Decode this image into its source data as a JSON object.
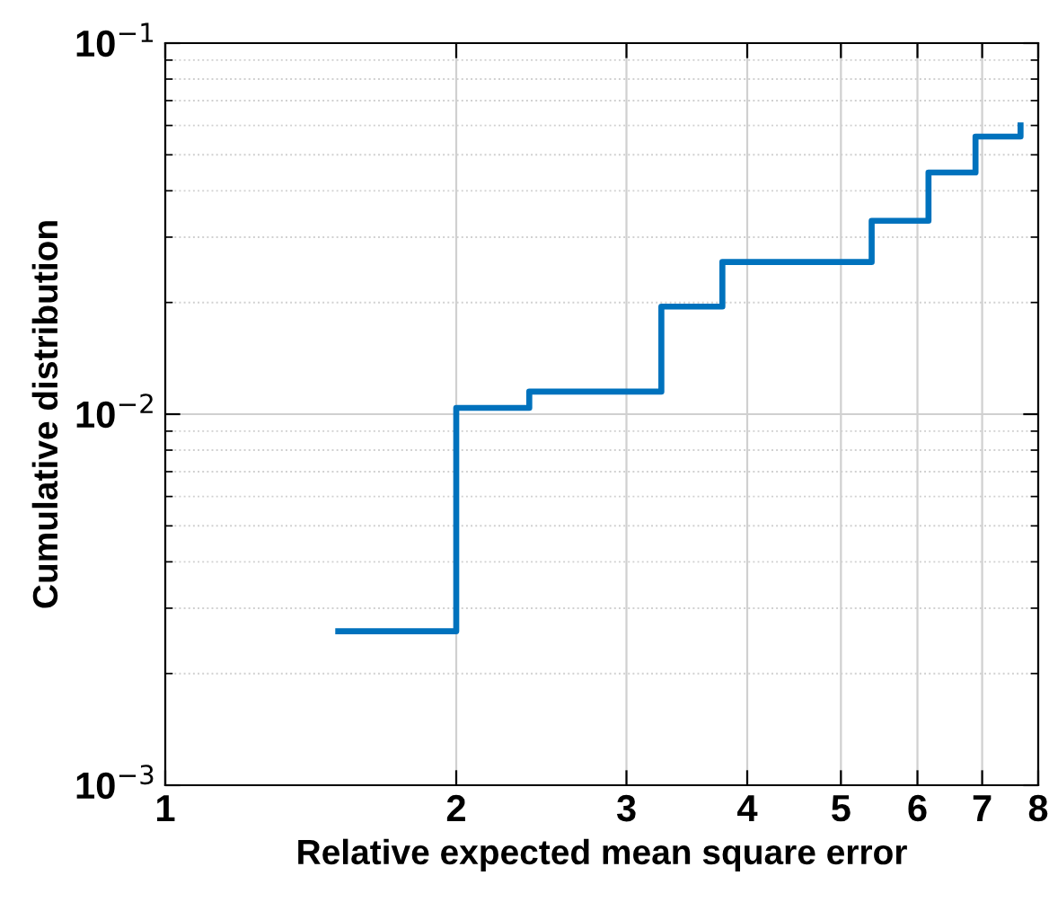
{
  "chart_data": {
    "type": "step",
    "xlabel": "Relative expected mean square error",
    "ylabel": "Cumulative distribution",
    "x": [
      1.51,
      2,
      2.38,
      3.26,
      3.77,
      5.38,
      6.16,
      6.89,
      7.67
    ],
    "series": [
      {
        "color": "#0072bd",
        "values": [
          0.0026,
          0.0104,
          0.0115,
          0.0195,
          0.0257,
          0.0332,
          0.0448,
          0.056,
          0.06
        ]
      }
    ],
    "log": "xy",
    "xlim": [
      1,
      8
    ],
    "ylim": [
      0.001,
      0.1
    ],
    "xticks": [
      1,
      2,
      3,
      4,
      5,
      6,
      7,
      8
    ],
    "yticks": [
      {
        "value": 0.001,
        "label": "10$^{−3}$"
      },
      {
        "value": 0.01,
        "label": "10$^{−2}$"
      },
      {
        "value": 0.1,
        "label": "10$^{−1}$"
      }
    ],
    "grid": true,
    "legend": false,
    "marker": "none",
    "line_style": "solid"
  }
}
